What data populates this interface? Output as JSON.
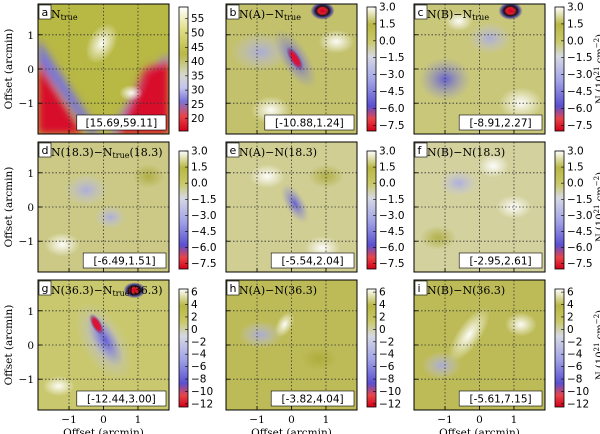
{
  "figure": {
    "xlabel": "Offset (arcmin)",
    "ylabel": "Offset (arcmin)",
    "colorbar_unit": "N (10",
    "colorbar_unit_exp": "21",
    "colorbar_unit_tail": " cm",
    "colorbar_unit_exp2": "−2",
    "colorbar_unit_close": ")"
  },
  "chart_data": [
    {
      "type": "heatmap",
      "panel": "a",
      "title": "N",
      "title_sub": "true",
      "range_label": "[15.69,59.11]",
      "xticks": [
        "−1",
        "0",
        "1"
      ],
      "yticks": [
        "1",
        "0",
        "−1"
      ],
      "colorbar": {
        "ticks": [
          "55",
          "50",
          "45",
          "40",
          "35",
          "30",
          "25",
          "20"
        ],
        "vmin": 15.69,
        "vmax": 59.11
      }
    },
    {
      "type": "heatmap",
      "panel": "b",
      "title": "N(A)−N",
      "title_sub": "true",
      "range_label": "[-10.88,1.24]",
      "colorbar": {
        "ticks": [
          "3.0",
          "1.5",
          "0.0",
          "−1.5",
          "−3.0",
          "−4.5",
          "−6.0",
          "−7.5"
        ],
        "vmin": -8,
        "vmax": 3
      }
    },
    {
      "type": "heatmap",
      "panel": "c",
      "title": "N(B)−N",
      "title_sub": "true",
      "range_label": "[-8.91,2.27]",
      "colorbar": {
        "ticks": [
          "3.0",
          "1.5",
          "0.0",
          "−1.5",
          "−3.0",
          "−4.5",
          "−6.0",
          "−7.5"
        ],
        "vmin": -8,
        "vmax": 3
      }
    },
    {
      "type": "heatmap",
      "panel": "d",
      "title": "N(18.3)−N",
      "title_sub": "true",
      "title_tail": "(18.3)",
      "range_label": "[-6.49,1.51]",
      "colorbar": {
        "ticks": [
          "3.0",
          "1.5",
          "0.0",
          "−1.5",
          "−3.0",
          "−4.5",
          "−6.0",
          "−7.5"
        ],
        "vmin": -8,
        "vmax": 3
      }
    },
    {
      "type": "heatmap",
      "panel": "e",
      "title": "N(A)−N(18.3)",
      "range_label": "[-5.54,2.04]",
      "colorbar": {
        "ticks": [
          "3.0",
          "1.5",
          "0.0",
          "−1.5",
          "−3.0",
          "−4.5",
          "−6.0",
          "−7.5"
        ],
        "vmin": -8,
        "vmax": 3
      }
    },
    {
      "type": "heatmap",
      "panel": "f",
      "title": "N(B)−N(18.3)",
      "range_label": "[-2.95,2.61]",
      "colorbar": {
        "ticks": [
          "3.0",
          "1.5",
          "0.0",
          "−1.5",
          "−3.0",
          "−4.5",
          "−6.0",
          "−7.5"
        ],
        "vmin": -8,
        "vmax": 3
      }
    },
    {
      "type": "heatmap",
      "panel": "g",
      "title": "N(36.3)−N",
      "title_sub": "true",
      "title_tail": "(36.3)",
      "range_label": "[-12.44,3.00]",
      "colorbar": {
        "ticks": [
          "6",
          "4",
          "2",
          "0",
          "−2",
          "−4",
          "−6",
          "−8",
          "−10",
          "−12"
        ],
        "vmin": -12.5,
        "vmax": 6.5
      }
    },
    {
      "type": "heatmap",
      "panel": "h",
      "title": "N(A)−N(36.3)",
      "range_label": "[-3.82,4.04]",
      "colorbar": {
        "ticks": [
          "6",
          "4",
          "2",
          "0",
          "−2",
          "−4",
          "−6",
          "−8",
          "−10",
          "−12"
        ],
        "vmin": -12.5,
        "vmax": 6.5
      }
    },
    {
      "type": "heatmap",
      "panel": "i",
      "title": "N(B)−N(36.3)",
      "range_label": "[-5.61,7.15]",
      "colorbar": {
        "ticks": [
          "6",
          "4",
          "2",
          "0",
          "−2",
          "−4",
          "−6",
          "−8",
          "−10",
          "−12"
        ],
        "vmin": -12.5,
        "vmax": 6.5
      }
    }
  ]
}
